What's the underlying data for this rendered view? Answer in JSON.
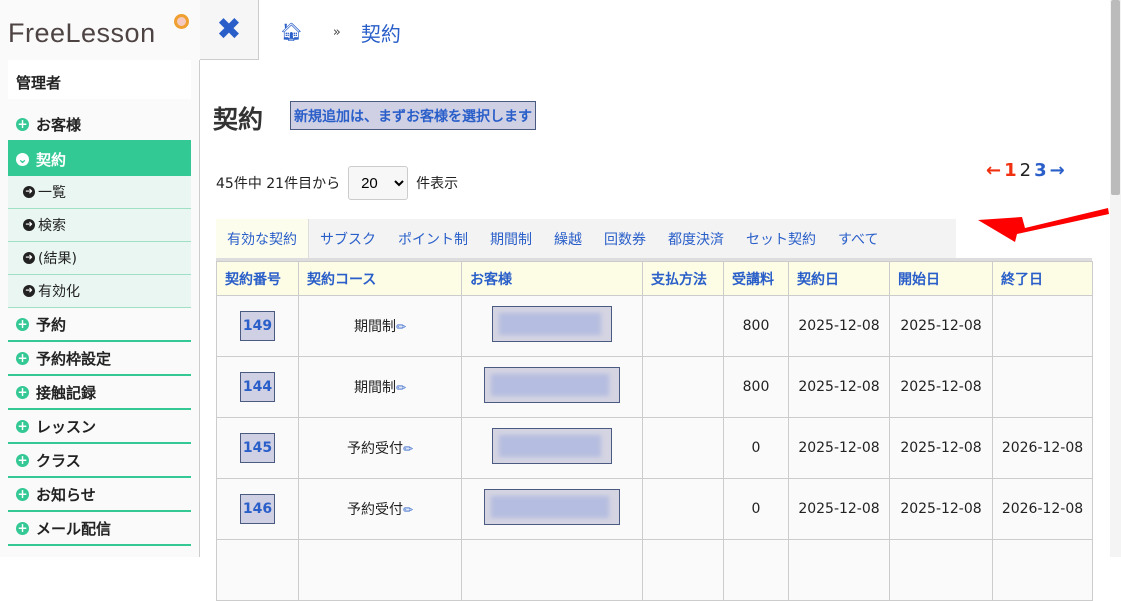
{
  "logo": "FreeLesson",
  "sidebar": {
    "role": "管理者",
    "items": [
      {
        "label": "お客様"
      },
      {
        "label": "契約",
        "active": true,
        "sub": [
          "一覧",
          "検索",
          "(結果)",
          "有効化"
        ]
      },
      {
        "label": "予約"
      },
      {
        "label": "予約枠設定"
      },
      {
        "label": "接触記録"
      },
      {
        "label": "レッスン"
      },
      {
        "label": "クラス"
      },
      {
        "label": "お知らせ"
      },
      {
        "label": "メール配信"
      }
    ]
  },
  "breadcrumb": {
    "current": "契約"
  },
  "page": {
    "title": "契約",
    "new_button": "新規追加は、まずお客様を選択します",
    "count_prefix": "45件中 21件目から",
    "per_page": "20",
    "count_suffix": "件表示"
  },
  "pager": {
    "prev": "←",
    "pages": [
      "1",
      "2",
      "3"
    ],
    "current": "2",
    "next": "→"
  },
  "tabs": [
    "有効な契約",
    "サブスク",
    "ポイント制",
    "期間制",
    "繰越",
    "回数券",
    "都度決済",
    "セット契約",
    "すべて"
  ],
  "table": {
    "headers": [
      "契約番号",
      "契約コース",
      "お客様",
      "支払方法",
      "受講料",
      "契約日",
      "開始日",
      "終了日"
    ],
    "rows": [
      {
        "no": "149",
        "course": "期間制",
        "fee": "800",
        "contract": "2025-12-08",
        "start": "2025-12-08",
        "end": ""
      },
      {
        "no": "144",
        "course": "期間制",
        "fee": "800",
        "contract": "2025-12-08",
        "start": "2025-12-08",
        "end": ""
      },
      {
        "no": "145",
        "course": "予約受付",
        "fee": "0",
        "contract": "2025-12-08",
        "start": "2025-12-08",
        "end": "2026-12-08"
      },
      {
        "no": "146",
        "course": "予約受付",
        "fee": "0",
        "contract": "2025-12-08",
        "start": "2025-12-08",
        "end": "2026-12-08"
      }
    ]
  },
  "colors": {
    "accent": "#33c994",
    "link": "#2a5fc9",
    "pager_red": "#f03010",
    "annotation_arrow": "#ff0000"
  }
}
